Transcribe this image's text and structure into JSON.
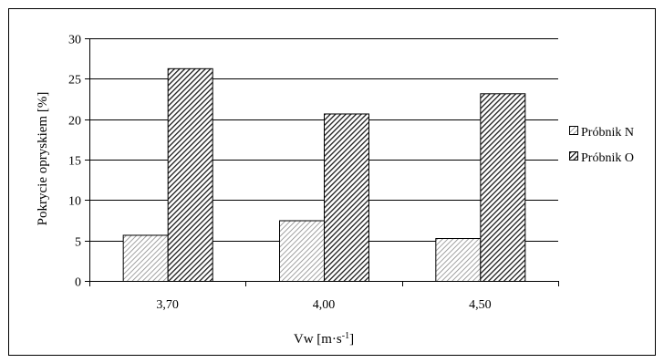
{
  "chart_data": {
    "type": "bar",
    "categories": [
      "3,70",
      "4,00",
      "4,50"
    ],
    "series": [
      {
        "name": "Próbnik N",
        "values": [
          5.7,
          7.5,
          5.3
        ],
        "pattern": "light-hatch"
      },
      {
        "name": "Próbnik O",
        "values": [
          26.3,
          20.7,
          23.2
        ],
        "pattern": "dark-hatch"
      }
    ],
    "ylabel": "Pokrycie opryskiem [%]",
    "xlabel": {
      "main": "Vw [m·s",
      "sup": "-1",
      "end": "]"
    },
    "ylim": [
      0,
      30
    ],
    "yticks": [
      "0",
      "5",
      "10",
      "15",
      "20",
      "25",
      "30"
    ],
    "grid": true,
    "legend_position": "right"
  }
}
